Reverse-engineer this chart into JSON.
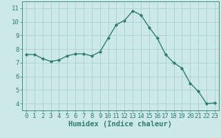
{
  "x": [
    0,
    1,
    2,
    3,
    4,
    5,
    6,
    7,
    8,
    9,
    10,
    11,
    12,
    13,
    14,
    15,
    16,
    17,
    18,
    19,
    20,
    21,
    22,
    23
  ],
  "y": [
    7.6,
    7.6,
    7.3,
    7.1,
    7.2,
    7.5,
    7.65,
    7.65,
    7.5,
    7.8,
    8.8,
    9.8,
    10.1,
    10.8,
    10.5,
    9.6,
    8.8,
    7.6,
    7.0,
    6.6,
    5.5,
    4.9,
    4.0,
    4.05
  ],
  "line_color": "#2e7d6e",
  "marker": "D",
  "marker_size": 2.2,
  "bg_color": "#cce8e8",
  "grid_color": "#aacfcf",
  "xlabel": "Humidex (Indice chaleur)",
  "ylim": [
    3.5,
    11.5
  ],
  "xlim": [
    -0.5,
    23.5
  ],
  "yticks": [
    4,
    5,
    6,
    7,
    8,
    9,
    10,
    11
  ],
  "xticks": [
    0,
    1,
    2,
    3,
    4,
    5,
    6,
    7,
    8,
    9,
    10,
    11,
    12,
    13,
    14,
    15,
    16,
    17,
    18,
    19,
    20,
    21,
    22,
    23
  ],
  "tick_color": "#2e7d6e",
  "label_color": "#2e7d6e",
  "tick_fontsize": 6.5,
  "xlabel_fontsize": 7.5,
  "linewidth": 1.0
}
